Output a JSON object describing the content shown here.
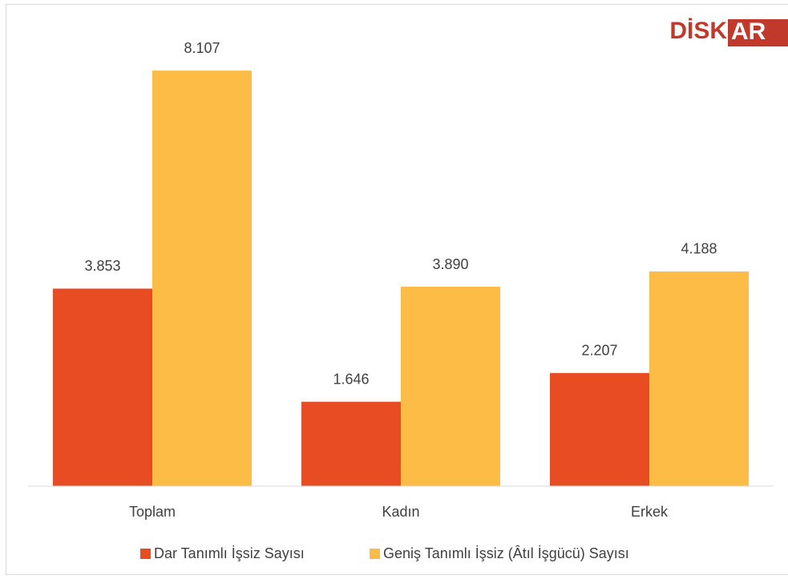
{
  "chart_data": {
    "type": "bar",
    "categories": [
      "Toplam",
      "Kadın",
      "Erkek"
    ],
    "series": [
      {
        "name": "Dar Tanımlı İşsiz Sayısı",
        "color": "#e84c22",
        "values": [
          3.853,
          1.646,
          2.207
        ]
      },
      {
        "name": "Geniş Tanımlı İşsiz (Âtıl İşgücü) Sayısı",
        "color": "#fdbc45",
        "values": [
          8.107,
          3.89,
          4.188
        ]
      }
    ],
    "value_labels": [
      [
        "3.853",
        "1.646",
        "2.207"
      ],
      [
        "8.107",
        "3.890",
        "4.188"
      ]
    ],
    "ylim": [
      0,
      9
    ],
    "legend": "bottom",
    "logo": {
      "left": "DİSK",
      "right": "AR"
    }
  }
}
